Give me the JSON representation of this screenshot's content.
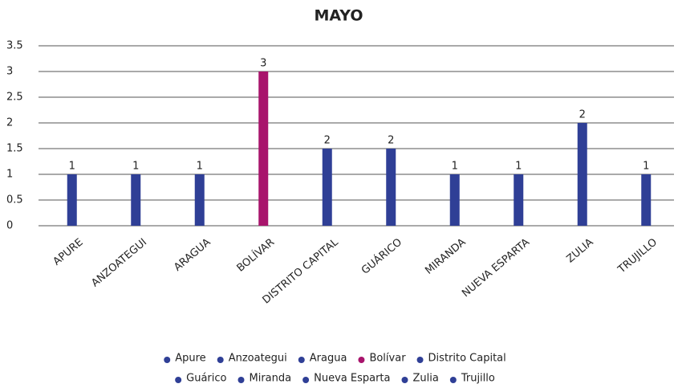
{
  "chart_data": {
    "type": "bar",
    "title": "MAYO",
    "categories": [
      "APURE",
      "ANZOATEGUI",
      "ARAGUA",
      "BOLÍVAR",
      "DISTRITO CAPITAL",
      "GUÁRICO",
      "MIRANDA",
      "NUEVA ESPARTA",
      "ZULIA",
      "TRUJILLO"
    ],
    "values": [
      1,
      1,
      1,
      3,
      1.5,
      1.5,
      1,
      1,
      2,
      1
    ],
    "value_labels": [
      "1",
      "1",
      "1",
      "3",
      "2",
      "2",
      "1",
      "1",
      "2",
      "1"
    ],
    "colors": [
      "#2f3f96",
      "#2f3f96",
      "#2f3f96",
      "#a8146c",
      "#2f3f96",
      "#2f3f96",
      "#2f3f96",
      "#2f3f96",
      "#2f3f96",
      "#2f3f96"
    ],
    "legend_labels": [
      "Apure",
      "Anzoategui",
      "Aragua",
      "Bolívar",
      "Distrito Capital",
      "Guárico",
      "Miranda",
      "Nueva Esparta",
      "Zulia",
      "Trujillo"
    ],
    "ylim": [
      0,
      3.5
    ],
    "yticks": [
      0,
      0.5,
      1,
      1.5,
      2,
      2.5,
      3,
      3.5
    ],
    "grid": true
  }
}
